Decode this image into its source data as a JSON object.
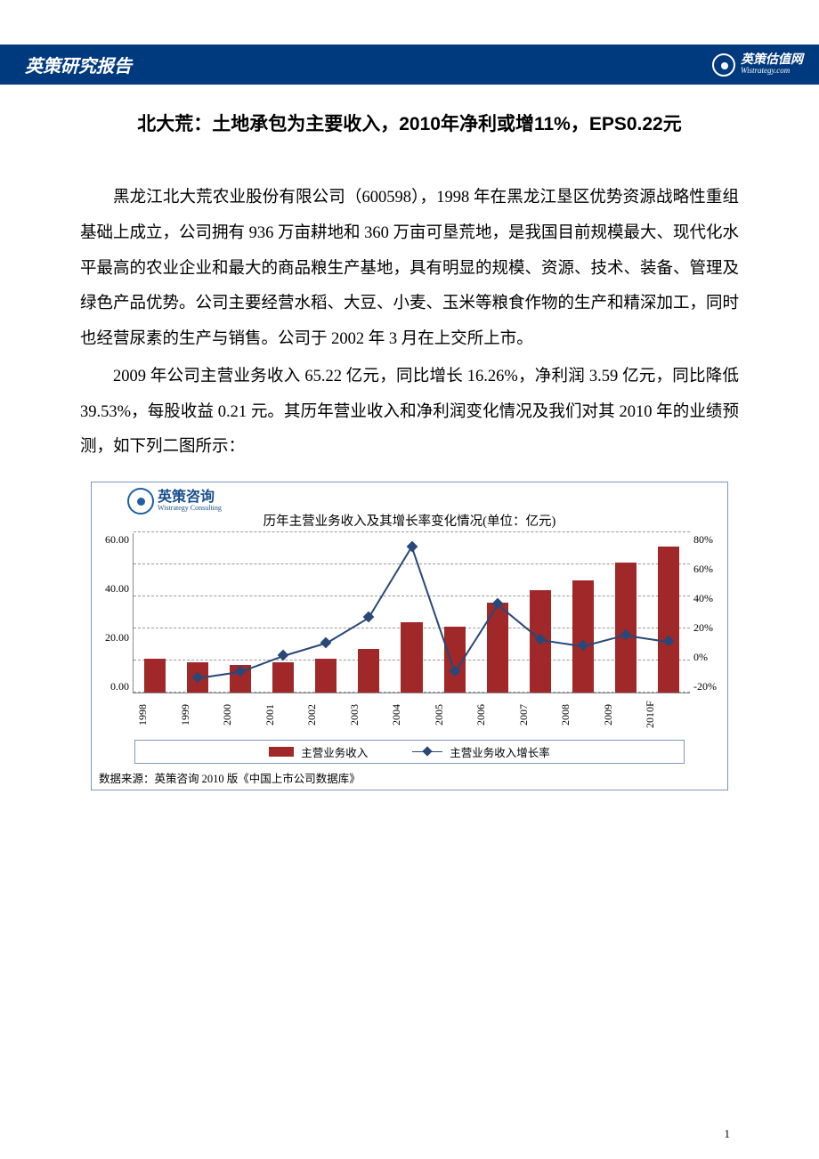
{
  "header": {
    "title": "英策研究报告",
    "logo_cn": "英策估值网",
    "logo_en": "Wistrategy.com"
  },
  "doc": {
    "title": "北大荒：土地承包为主要收入，2010年净利或增11%，EPS0.22元",
    "para1": "黑龙江北大荒农业股份有限公司（600598），1998 年在黑龙江垦区优势资源战略性重组基础上成立，公司拥有 936 万亩耕地和 360 万亩可垦荒地，是我国目前规模最大、现代化水平最高的农业企业和最大的商品粮生产基地，具有明显的规模、资源、技术、装备、管理及绿色产品优势。公司主要经营水稻、大豆、小麦、玉米等粮食作物的生产和精深加工，同时也经营尿素的生产与销售。公司于 2002 年 3 月在上交所上市。",
    "para2": "2009 年公司主营业务收入 65.22 亿元，同比增长 16.26%，净利润 3.59 亿元，同比降低 39.53%，每股收益 0.21 元。其历年营业收入和净利润变化情况及我们对其 2010 年的业绩预测，如下列二图所示："
  },
  "chart": {
    "type": "combo-bar-line",
    "logo_cn": "英策咨询",
    "logo_en": "Wistrategy Consulting",
    "title": "历年主营业务收入及其增长率变化情况(单位：亿元)",
    "categories": [
      "1998",
      "1999",
      "2000",
      "2001",
      "2002",
      "2003",
      "2004",
      "2005",
      "2006",
      "2007",
      "2008",
      "2009",
      "2010F"
    ],
    "bar_values": [
      17,
      15,
      14,
      15,
      17,
      22,
      35,
      33,
      45,
      51,
      56,
      65,
      73
    ],
    "line_values_pct": [
      null,
      -10,
      -6,
      4,
      12,
      28,
      72,
      -6,
      36,
      14,
      10,
      17,
      13
    ],
    "y_left": {
      "min": 0,
      "max": 80,
      "ticks": [
        "0.00",
        "20.00",
        "40.00",
        "60.00"
      ]
    },
    "y_right": {
      "min": -20,
      "max": 80,
      "ticks": [
        "-20%",
        "0%",
        "20%",
        "40%",
        "60%",
        "80%"
      ]
    },
    "bar_color": "#a02828",
    "line_color": "#284878",
    "grid_color": "#999999",
    "border_color": "#7a98c4",
    "legend": {
      "bar": "主营业务收入",
      "line": "主营业务收入增长率"
    },
    "source": "数据来源：英策咨询 2010 版《中国上市公司数据库》"
  },
  "page_number": "1"
}
